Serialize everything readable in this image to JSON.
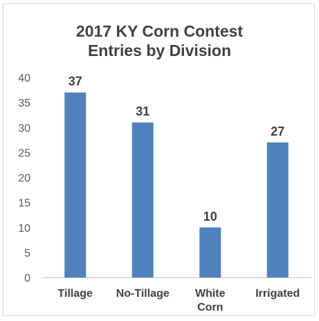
{
  "chart_data": {
    "type": "bar",
    "title_lines": [
      "2017 KY Corn Contest",
      "Entries by Division"
    ],
    "categories": [
      [
        "Tillage"
      ],
      [
        "No-Tillage"
      ],
      [
        "White",
        "Corn"
      ],
      [
        "Irrigated"
      ]
    ],
    "values": [
      37,
      31,
      10,
      27
    ],
    "data_labels": [
      "37",
      "31",
      "10",
      "27"
    ],
    "ylim": [
      0,
      40
    ],
    "yticks": [
      "0",
      "5",
      "10",
      "15",
      "20",
      "25",
      "30",
      "35",
      "40"
    ],
    "xlabel": "",
    "ylabel": "",
    "grid": false,
    "legend": "none",
    "colors": {
      "bar": "#4f81bd",
      "text": "#404040",
      "axis_text": "#595959",
      "axis_line": "#bfbfbf"
    }
  }
}
